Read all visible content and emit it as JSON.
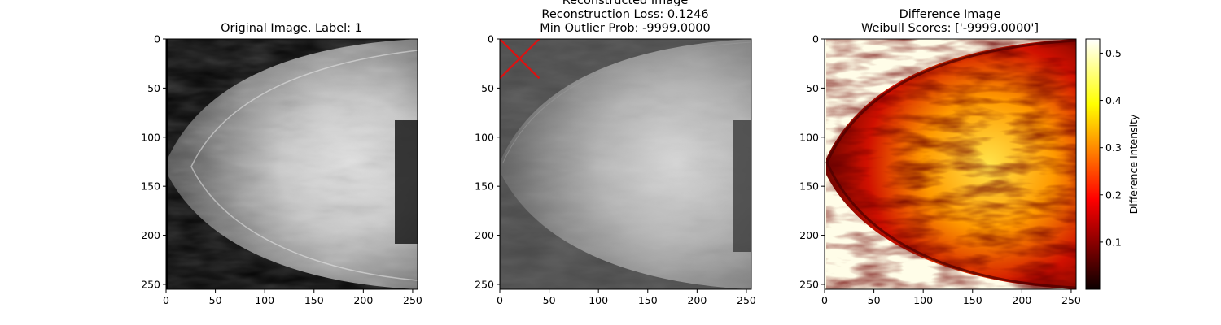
{
  "chart_data": [
    {
      "type": "image",
      "title": "Original Image. Label: 1",
      "xlim": [
        0,
        255
      ],
      "ylim": [
        255,
        0
      ],
      "x_ticks": [
        0,
        50,
        100,
        150,
        200,
        250
      ],
      "y_ticks": [
        0,
        50,
        100,
        150,
        200,
        250
      ],
      "colormap": "gray",
      "background_color": "#000000"
    },
    {
      "type": "image",
      "title_lines": [
        "Reconstructed Image",
        "Reconstruction Loss: 0.1246",
        "Min Outlier Prob: -9999.0000"
      ],
      "xlim": [
        0,
        255
      ],
      "ylim": [
        255,
        0
      ],
      "x_ticks": [
        0,
        50,
        100,
        150,
        200,
        250
      ],
      "y_ticks": [
        0,
        50,
        100,
        150,
        200,
        250
      ],
      "colormap": "gray",
      "background_color": "#4a4a4a",
      "marker": {
        "shape": "x",
        "color": "#dd1111",
        "x": 20,
        "y": 20,
        "extent": 20
      }
    },
    {
      "type": "heatmap",
      "title_lines": [
        "Difference Image",
        "Weibull Scores: ['-9999.0000']"
      ],
      "xlim": [
        0,
        255
      ],
      "ylim": [
        255,
        0
      ],
      "x_ticks": [
        0,
        50,
        100,
        150,
        200,
        250
      ],
      "y_ticks": [
        0,
        50,
        100,
        150,
        200,
        250
      ],
      "colormap": "hot",
      "background_color": "#fffde8",
      "colorbar": {
        "label": "Difference Intensity",
        "range": [
          0.0,
          0.53
        ],
        "ticks": [
          0.1,
          0.2,
          0.3,
          0.4,
          0.5
        ]
      }
    }
  ]
}
